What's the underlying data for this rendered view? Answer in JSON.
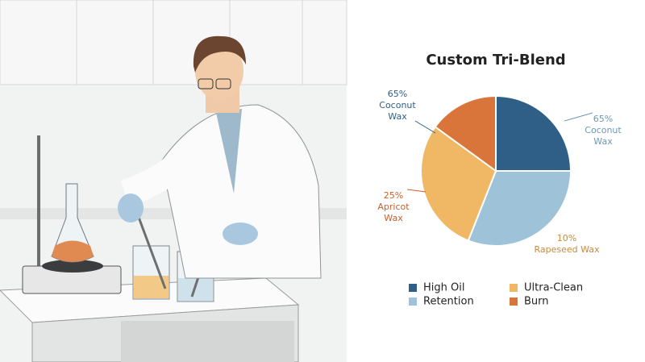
{
  "chart_data": {
    "type": "pie",
    "title": "Custom Tri-Blend",
    "categories": [
      "High Oil",
      "Retention",
      "Ultra-Clean",
      "Burn"
    ],
    "values": [
      25,
      31,
      29,
      15
    ],
    "colors": [
      "#2f5f86",
      "#9ec3d8",
      "#f0b865",
      "#d9743a"
    ],
    "annotations": [
      [
        "65%",
        "Coconut",
        "Wax"
      ],
      [
        "65%",
        "Coconut",
        "Wax"
      ],
      [
        "10%",
        "Rapeseed Wax"
      ],
      [
        "25%",
        "Apricot",
        "Wax"
      ]
    ]
  }
}
